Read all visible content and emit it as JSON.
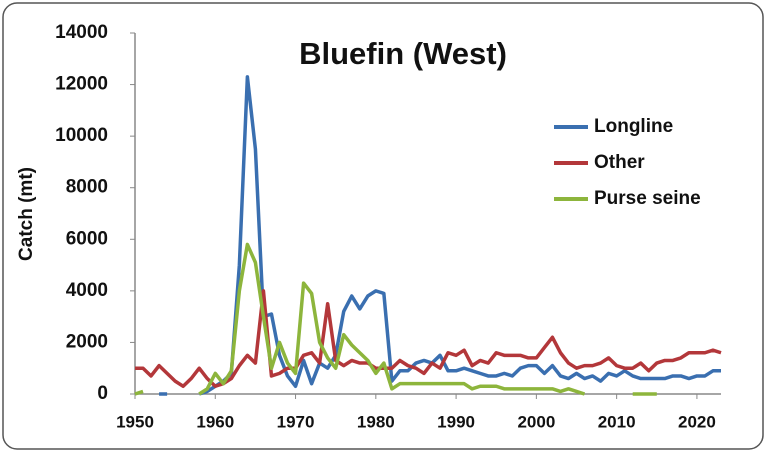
{
  "chart_data": {
    "type": "line",
    "title": "Bluefin (West)",
    "y_label": "Catch (mt)",
    "x": [
      1950,
      1951,
      1952,
      1953,
      1954,
      1955,
      1956,
      1957,
      1958,
      1959,
      1960,
      1961,
      1962,
      1963,
      1964,
      1965,
      1966,
      1967,
      1968,
      1969,
      1970,
      1971,
      1972,
      1973,
      1974,
      1975,
      1976,
      1977,
      1978,
      1979,
      1980,
      1981,
      1982,
      1983,
      1984,
      1985,
      1986,
      1987,
      1988,
      1989,
      1990,
      1991,
      1992,
      1993,
      1994,
      1995,
      1996,
      1997,
      1998,
      1999,
      2000,
      2001,
      2002,
      2003,
      2004,
      2005,
      2006,
      2007,
      2008,
      2009,
      2010,
      2011,
      2012,
      2013,
      2014,
      2015,
      2016,
      2017,
      2018,
      2019,
      2020,
      2021,
      2022,
      2023
    ],
    "series": [
      {
        "name": "Longline",
        "color": "#3a6fb0",
        "values": [
          null,
          null,
          null,
          0,
          0,
          null,
          null,
          null,
          0,
          100,
          300,
          500,
          800,
          5000,
          12300,
          9500,
          3000,
          3100,
          1500,
          700,
          300,
          1300,
          400,
          1200,
          1000,
          1500,
          3200,
          3800,
          3300,
          3800,
          4000,
          3900,
          500,
          900,
          900,
          1200,
          1300,
          1200,
          1500,
          900,
          900,
          1000,
          900,
          800,
          700,
          700,
          800,
          700,
          1000,
          1100,
          1100,
          800,
          1100,
          700,
          600,
          800,
          600,
          700,
          500,
          800,
          700,
          900,
          700,
          600,
          600,
          600,
          600,
          700,
          700,
          600,
          700,
          700,
          900,
          900
        ]
      },
      {
        "name": "Other",
        "color": "#b3373a",
        "values": [
          1000,
          1000,
          700,
          1100,
          800,
          500,
          300,
          600,
          1000,
          600,
          300,
          400,
          600,
          1100,
          1500,
          1200,
          4000,
          700,
          800,
          1000,
          1000,
          1500,
          1600,
          1200,
          3500,
          1300,
          1100,
          1300,
          1200,
          1200,
          1000,
          1000,
          1000,
          1300,
          1100,
          1000,
          800,
          1200,
          1000,
          1600,
          1500,
          1700,
          1100,
          1300,
          1200,
          1600,
          1500,
          1500,
          1500,
          1400,
          1400,
          1800,
          2200,
          1600,
          1200,
          1000,
          1100,
          1100,
          1200,
          1400,
          1100,
          1000,
          1000,
          1200,
          900,
          1200,
          1300,
          1300,
          1400,
          1600,
          1600,
          1600,
          1700,
          1600
        ]
      },
      {
        "name": "Purse seine",
        "color": "#8db53c",
        "values": [
          0,
          100,
          null,
          null,
          null,
          null,
          null,
          null,
          0,
          200,
          800,
          400,
          900,
          4000,
          5800,
          5100,
          3000,
          1000,
          2000,
          1200,
          800,
          4300,
          3900,
          2000,
          1400,
          1000,
          2300,
          1900,
          1600,
          1300,
          800,
          1200,
          200,
          400,
          400,
          400,
          400,
          400,
          400,
          400,
          400,
          400,
          200,
          300,
          300,
          300,
          200,
          200,
          200,
          200,
          200,
          200,
          200,
          100,
          200,
          100,
          0,
          null,
          null,
          null,
          null,
          null,
          0,
          0,
          0,
          0,
          null,
          null,
          null,
          null,
          null,
          null,
          null,
          null
        ]
      }
    ],
    "xlim": [
      1950,
      2023
    ],
    "xticks": [
      1950,
      1960,
      1970,
      1980,
      1990,
      2000,
      2010,
      2020
    ],
    "ylim": [
      0,
      14000
    ],
    "yticks": [
      0,
      2000,
      4000,
      6000,
      8000,
      10000,
      12000,
      14000
    ]
  }
}
